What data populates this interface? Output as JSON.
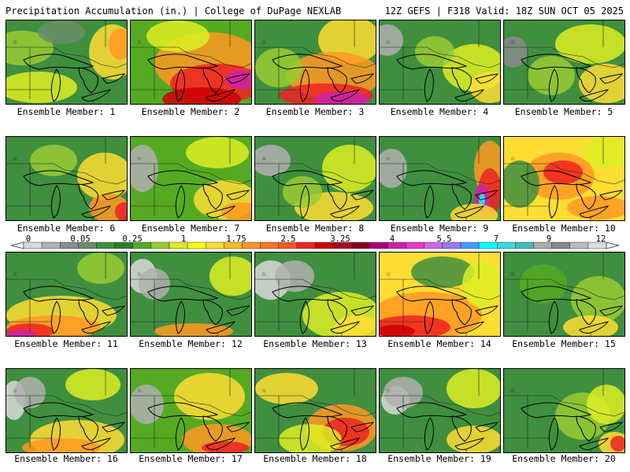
{
  "header": {
    "left": "Precipitation Accumulation (in.) | College of DuPage NEXLAB",
    "right": "12Z GEFS | F318 Valid: 18Z SUN OCT 05 2025"
  },
  "colorbar": {
    "labels": [
      "0",
      "0.05",
      "0.25",
      "1",
      "1.75",
      "2.5",
      "3.25",
      "4",
      "5.5",
      "7",
      "9",
      "12"
    ],
    "colors": [
      "#d9d9d9",
      "#b0b0b0",
      "#8a8a8a",
      "#6a8f6a",
      "#3f8f3f",
      "#2e7d2e",
      "#55aa22",
      "#99cc33",
      "#ddee22",
      "#ffff00",
      "#ffdd33",
      "#ffbb22",
      "#ff9922",
      "#ff7722",
      "#ff5522",
      "#ee2222",
      "#cc0000",
      "#aa0022",
      "#880022",
      "#aa0077",
      "#cc22aa",
      "#ee33cc",
      "#cc66ee",
      "#9977ee",
      "#4499ff",
      "#00ffff",
      "#33dddd",
      "#44bbbb",
      "#aaaaaa",
      "#888888",
      "#bbbbbb",
      "#dddddd"
    ]
  },
  "members": [
    {
      "label": "Ensemble Member: 1",
      "base": "#3f8f3f",
      "blobs": [
        [
          "#99cc33",
          20,
          35,
          40,
          22
        ],
        [
          "#ffdd33",
          135,
          40,
          30,
          35
        ],
        [
          "#ff9922",
          145,
          30,
          15,
          20
        ],
        [
          "#ddee22",
          40,
          85,
          50,
          20
        ],
        [
          "#6a8f6a",
          70,
          15,
          30,
          15
        ]
      ]
    },
    {
      "label": "Ensemble Member: 2",
      "base": "#55aa22",
      "blobs": [
        [
          "#ff9922",
          100,
          55,
          70,
          40
        ],
        [
          "#ee2222",
          110,
          80,
          60,
          25
        ],
        [
          "#cc0000",
          90,
          100,
          50,
          15
        ],
        [
          "#cc22aa",
          140,
          75,
          20,
          12
        ],
        [
          "#ddee22",
          60,
          20,
          40,
          20
        ]
      ]
    },
    {
      "label": "Ensemble Member: 3",
      "base": "#3f8f3f",
      "blobs": [
        [
          "#ffdd33",
          120,
          25,
          40,
          30
        ],
        [
          "#ff9922",
          100,
          70,
          60,
          30
        ],
        [
          "#ee2222",
          90,
          95,
          60,
          15
        ],
        [
          "#cc22aa",
          110,
          100,
          35,
          10
        ],
        [
          "#99cc33",
          30,
          60,
          30,
          25
        ]
      ]
    },
    {
      "label": "Ensemble Member: 4",
      "base": "#3f8f3f",
      "blobs": [
        [
          "#b0b0b0",
          10,
          25,
          20,
          20
        ],
        [
          "#ddee22",
          120,
          60,
          40,
          30
        ],
        [
          "#ffdd33",
          140,
          85,
          25,
          20
        ],
        [
          "#99cc33",
          70,
          40,
          25,
          20
        ]
      ]
    },
    {
      "label": "Ensemble Member: 5",
      "base": "#3f8f3f",
      "blobs": [
        [
          "#8a8a8a",
          12,
          40,
          18,
          20
        ],
        [
          "#ddee22",
          110,
          30,
          45,
          25
        ],
        [
          "#ffdd33",
          130,
          80,
          35,
          25
        ],
        [
          "#99cc33",
          60,
          70,
          30,
          25
        ]
      ]
    },
    {
      "label": "Ensemble Member: 6",
      "base": "#3f8f3f",
      "blobs": [
        [
          "#ffdd33",
          125,
          50,
          35,
          30
        ],
        [
          "#ff9922",
          130,
          90,
          25,
          18
        ],
        [
          "#ee2222",
          150,
          95,
          12,
          12
        ],
        [
          "#99cc33",
          60,
          30,
          30,
          20
        ]
      ]
    },
    {
      "label": "Ensemble Member: 7",
      "base": "#55aa22",
      "blobs": [
        [
          "#b0b0b0",
          15,
          40,
          20,
          30
        ],
        [
          "#ddee22",
          110,
          20,
          40,
          20
        ],
        [
          "#ffdd33",
          120,
          80,
          40,
          25
        ],
        [
          "#ff9922",
          140,
          95,
          25,
          12
        ]
      ]
    },
    {
      "label": "Ensemble Member: 8",
      "base": "#3f8f3f",
      "blobs": [
        [
          "#b0b0b0",
          20,
          30,
          25,
          20
        ],
        [
          "#ddee22",
          120,
          40,
          35,
          30
        ],
        [
          "#ffdd33",
          100,
          90,
          50,
          20
        ],
        [
          "#99cc33",
          60,
          70,
          25,
          20
        ]
      ]
    },
    {
      "label": "Ensemble Member: 9",
      "base": "#3f8f3f",
      "blobs": [
        [
          "#b0b0b0",
          15,
          40,
          20,
          25
        ],
        [
          "#ff9922",
          140,
          40,
          20,
          35
        ],
        [
          "#ee2222",
          140,
          70,
          15,
          30
        ],
        [
          "#cc22aa",
          130,
          80,
          10,
          20
        ],
        [
          "#00ffff",
          130,
          80,
          4,
          8
        ],
        [
          "#ffdd33",
          120,
          100,
          30,
          15
        ]
      ]
    },
    {
      "label": "Ensemble Member: 10",
      "base": "#ffdd33",
      "blobs": [
        [
          "#ff9922",
          70,
          50,
          45,
          30
        ],
        [
          "#ee2222",
          75,
          45,
          25,
          15
        ],
        [
          "#3f8f3f",
          20,
          60,
          25,
          30
        ],
        [
          "#ddee22",
          130,
          20,
          30,
          20
        ],
        [
          "#ff9922",
          120,
          90,
          40,
          15
        ]
      ]
    },
    {
      "label": "Ensemble Member: 11",
      "base": "#3f8f3f",
      "blobs": [
        [
          "#ffdd33",
          70,
          80,
          70,
          25
        ],
        [
          "#ff9922",
          60,
          95,
          60,
          15
        ],
        [
          "#ee2222",
          30,
          100,
          30,
          10
        ],
        [
          "#cc22aa",
          20,
          104,
          18,
          6
        ],
        [
          "#99cc33",
          120,
          20,
          30,
          20
        ]
      ]
    },
    {
      "label": "Ensemble Member: 12",
      "base": "#3f8f3f",
      "blobs": [
        [
          "#d9d9d9",
          15,
          30,
          18,
          22
        ],
        [
          "#b0b0b0",
          30,
          40,
          20,
          20
        ],
        [
          "#ddee22",
          130,
          30,
          30,
          25
        ],
        [
          "#ff9922",
          80,
          100,
          50,
          10
        ]
      ]
    },
    {
      "label": "Ensemble Member: 13",
      "base": "#3f8f3f",
      "blobs": [
        [
          "#d9d9d9",
          20,
          35,
          25,
          25
        ],
        [
          "#b0b0b0",
          50,
          30,
          25,
          20
        ],
        [
          "#ddee22",
          110,
          80,
          50,
          30
        ],
        [
          "#ffdd33",
          130,
          95,
          30,
          15
        ]
      ]
    },
    {
      "label": "Ensemble Member: 14",
      "base": "#ffdd33",
      "blobs": [
        [
          "#ff9922",
          60,
          80,
          70,
          30
        ],
        [
          "#ee2222",
          40,
          95,
          50,
          15
        ],
        [
          "#cc0000",
          20,
          100,
          25,
          8
        ],
        [
          "#3f8f3f",
          80,
          25,
          40,
          20
        ],
        [
          "#ddee22",
          130,
          40,
          25,
          30
        ]
      ]
    },
    {
      "label": "Ensemble Member: 15",
      "base": "#3f8f3f",
      "blobs": [
        [
          "#99cc33",
          120,
          60,
          35,
          30
        ],
        [
          "#ffdd33",
          110,
          95,
          35,
          15
        ],
        [
          "#55aa22",
          50,
          40,
          30,
          25
        ]
      ]
    },
    {
      "label": "Ensemble Member: 16",
      "base": "#3f8f3f",
      "blobs": [
        [
          "#d9d9d9",
          10,
          40,
          15,
          25
        ],
        [
          "#b0b0b0",
          30,
          30,
          20,
          20
        ],
        [
          "#ffdd33",
          90,
          90,
          60,
          25
        ],
        [
          "#ff9922",
          70,
          100,
          50,
          12
        ],
        [
          "#ddee22",
          110,
          20,
          35,
          20
        ]
      ]
    },
    {
      "label": "Ensemble Member: 17",
      "base": "#55aa22",
      "blobs": [
        [
          "#b0b0b0",
          20,
          45,
          22,
          25
        ],
        [
          "#ffdd33",
          100,
          35,
          45,
          30
        ],
        [
          "#ff9922",
          110,
          90,
          45,
          20
        ],
        [
          "#ee2222",
          120,
          100,
          30,
          8
        ]
      ]
    },
    {
      "label": "Ensemble Member: 18",
      "base": "#3f8f3f",
      "blobs": [
        [
          "#ffdd33",
          40,
          25,
          40,
          20
        ],
        [
          "#ff9922",
          110,
          75,
          45,
          30
        ],
        [
          "#ee2222",
          115,
          80,
          30,
          18
        ],
        [
          "#ddee22",
          70,
          90,
          40,
          20
        ]
      ]
    },
    {
      "label": "Ensemble Member: 19",
      "base": "#3f8f3f",
      "blobs": [
        [
          "#d9d9d9",
          20,
          40,
          18,
          18
        ],
        [
          "#b0b0b0",
          30,
          30,
          25,
          20
        ],
        [
          "#ddee22",
          120,
          25,
          35,
          25
        ],
        [
          "#ffdd33",
          120,
          90,
          35,
          18
        ]
      ]
    },
    {
      "label": "Ensemble Member: 20",
      "base": "#3f8f3f",
      "blobs": [
        [
          "#99cc33",
          100,
          60,
          35,
          30
        ],
        [
          "#ddee22",
          130,
          45,
          25,
          25
        ],
        [
          "#ffdd33",
          140,
          95,
          20,
          15
        ],
        [
          "#ee2222",
          145,
          95,
          10,
          10
        ]
      ]
    }
  ]
}
